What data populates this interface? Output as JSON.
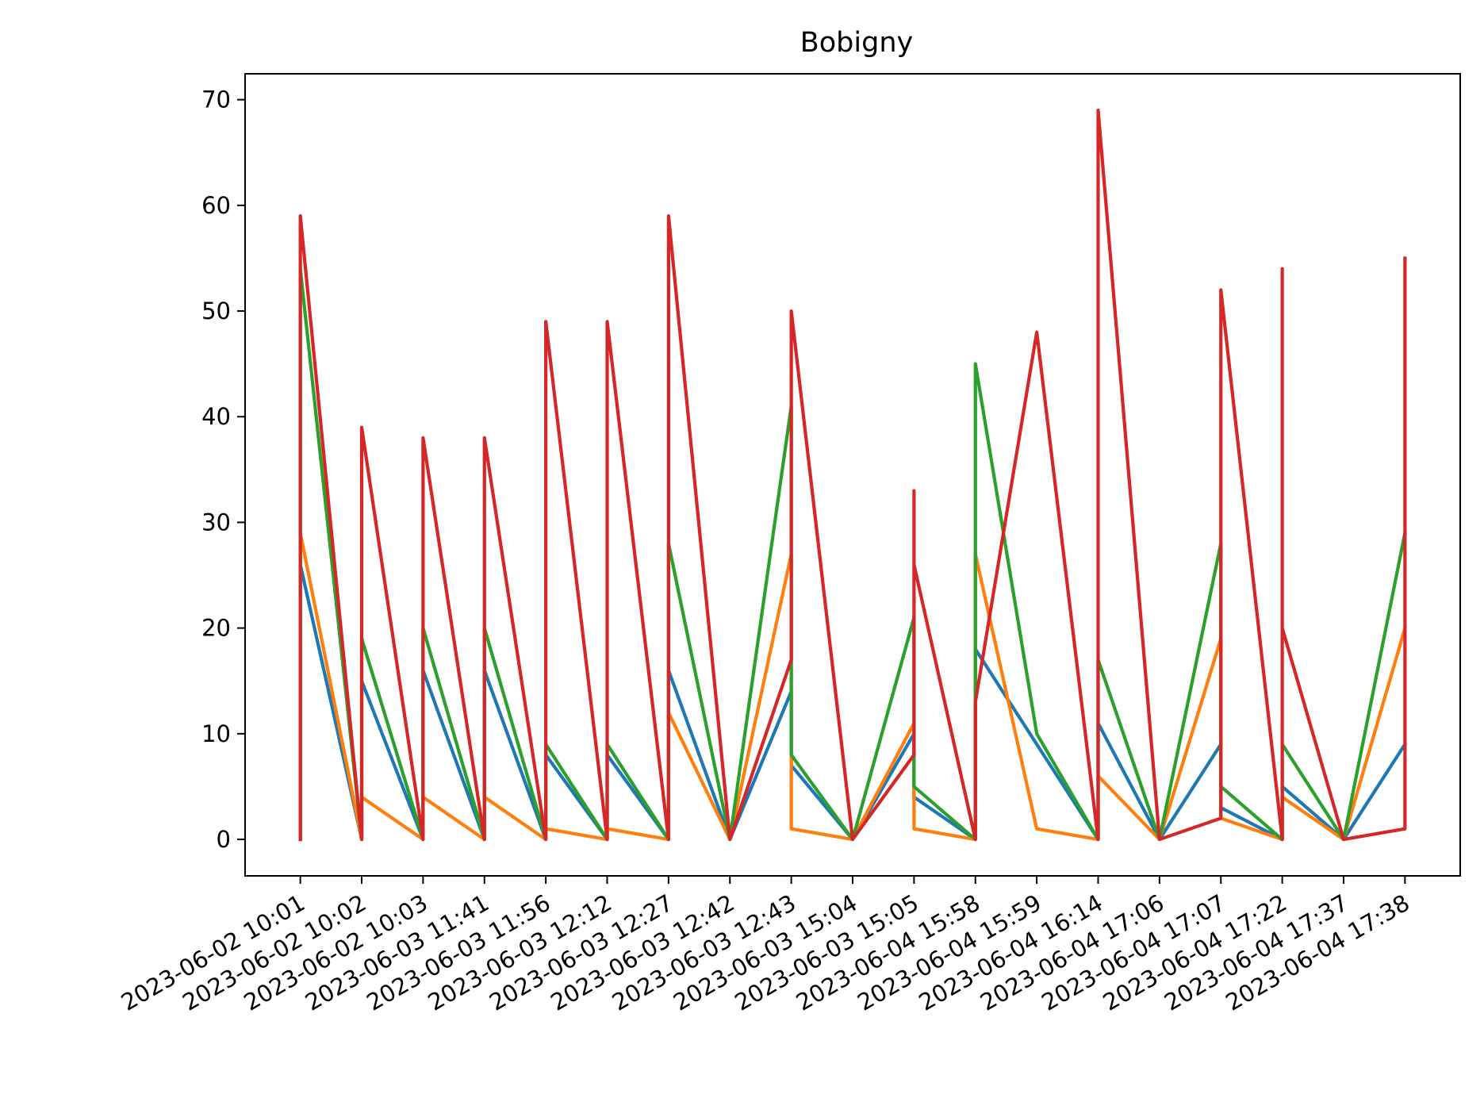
{
  "chart_data": {
    "type": "line",
    "title": "Bobigny",
    "xlabel": "",
    "ylabel": "",
    "ylim": [
      -3.45,
      72.45
    ],
    "yticks": [
      0,
      10,
      20,
      30,
      40,
      50,
      60,
      70
    ],
    "grid": false,
    "x_categories": [
      "2023-06-02 10:01",
      "2023-06-02 10:02",
      "2023-06-02 10:03",
      "2023-06-03 11:41",
      "2023-06-03 11:56",
      "2023-06-03 12:12",
      "2023-06-03 12:27",
      "2023-06-03 12:42",
      "2023-06-03 12:43",
      "2023-06-03 15:04",
      "2023-06-03 15:05",
      "2023-06-04 15:58",
      "2023-06-04 15:59",
      "2023-06-04 16:14",
      "2023-06-04 17:06",
      "2023-06-04 17:07",
      "2023-06-04 17:22",
      "2023-06-04 17:37",
      "2023-06-04 17:38"
    ],
    "series": [
      {
        "color": "#1f77b4",
        "points": [
          [
            0,
            0
          ],
          [
            0,
            26
          ],
          [
            1,
            0
          ],
          [
            1,
            15
          ],
          [
            2,
            0
          ],
          [
            2,
            16
          ],
          [
            3,
            0
          ],
          [
            3,
            16
          ],
          [
            4,
            0
          ],
          [
            4,
            8
          ],
          [
            5,
            0
          ],
          [
            5,
            8
          ],
          [
            6,
            0
          ],
          [
            6,
            16
          ],
          [
            7,
            0
          ],
          [
            8,
            14
          ],
          [
            8,
            7
          ],
          [
            9,
            0
          ],
          [
            10,
            10
          ],
          [
            10,
            4
          ],
          [
            11,
            0
          ],
          [
            11,
            18
          ],
          [
            12,
            9
          ],
          [
            13,
            0
          ],
          [
            13,
            11
          ],
          [
            14,
            0
          ],
          [
            15,
            9
          ],
          [
            15,
            3
          ],
          [
            16,
            0
          ],
          [
            16,
            5
          ],
          [
            17,
            0
          ],
          [
            18,
            9
          ]
        ]
      },
      {
        "color": "#ff7f0e",
        "points": [
          [
            0,
            0
          ],
          [
            0,
            29
          ],
          [
            1,
            0
          ],
          [
            1,
            4
          ],
          [
            2,
            0
          ],
          [
            2,
            4
          ],
          [
            3,
            0
          ],
          [
            3,
            4
          ],
          [
            4,
            0
          ],
          [
            4,
            1
          ],
          [
            5,
            0
          ],
          [
            5,
            1
          ],
          [
            6,
            0
          ],
          [
            6,
            12
          ],
          [
            7,
            0
          ],
          [
            8,
            27
          ],
          [
            8,
            1
          ],
          [
            9,
            0
          ],
          [
            10,
            11
          ],
          [
            10,
            1
          ],
          [
            11,
            0
          ],
          [
            11,
            27
          ],
          [
            12,
            1
          ],
          [
            13,
            0
          ],
          [
            13,
            6
          ],
          [
            14,
            0
          ],
          [
            15,
            19
          ],
          [
            15,
            2
          ],
          [
            16,
            0
          ],
          [
            16,
            4
          ],
          [
            17,
            0
          ],
          [
            18,
            20
          ]
        ]
      },
      {
        "color": "#2ca02c",
        "points": [
          [
            0,
            0
          ],
          [
            0,
            54
          ],
          [
            1,
            0
          ],
          [
            1,
            19
          ],
          [
            2,
            0
          ],
          [
            2,
            20
          ],
          [
            3,
            0
          ],
          [
            3,
            20
          ],
          [
            4,
            0
          ],
          [
            4,
            9
          ],
          [
            5,
            0
          ],
          [
            5,
            9
          ],
          [
            6,
            0
          ],
          [
            6,
            28
          ],
          [
            7,
            0
          ],
          [
            8,
            41
          ],
          [
            8,
            8
          ],
          [
            9,
            0
          ],
          [
            10,
            21
          ],
          [
            10,
            5
          ],
          [
            11,
            0
          ],
          [
            11,
            45
          ],
          [
            12,
            10
          ],
          [
            13,
            0
          ],
          [
            13,
            17
          ],
          [
            14,
            0
          ],
          [
            15,
            28
          ],
          [
            15,
            5
          ],
          [
            16,
            0
          ],
          [
            16,
            9
          ],
          [
            17,
            0
          ],
          [
            18,
            29
          ]
        ]
      },
      {
        "color": "#d62728",
        "points": [
          [
            0,
            0
          ],
          [
            0,
            59
          ],
          [
            1,
            0
          ],
          [
            1,
            39
          ],
          [
            2,
            0
          ],
          [
            2,
            38
          ],
          [
            3,
            0
          ],
          [
            3,
            38
          ],
          [
            4,
            0
          ],
          [
            4,
            49
          ],
          [
            5,
            0
          ],
          [
            5,
            49
          ],
          [
            6,
            0
          ],
          [
            6,
            59
          ],
          [
            7,
            0
          ],
          [
            8,
            17
          ],
          [
            8,
            50
          ],
          [
            9,
            0
          ],
          [
            10,
            8
          ],
          [
            10,
            33
          ],
          [
            10,
            26
          ],
          [
            11,
            0
          ],
          [
            11,
            13
          ],
          [
            12,
            48
          ],
          [
            13,
            0
          ],
          [
            13,
            69
          ],
          [
            14,
            0
          ],
          [
            15,
            2
          ],
          [
            15,
            52
          ],
          [
            16,
            0
          ],
          [
            16,
            54
          ],
          [
            16,
            20
          ],
          [
            17,
            0
          ],
          [
            18,
            1
          ],
          [
            18,
            55
          ]
        ]
      }
    ]
  }
}
